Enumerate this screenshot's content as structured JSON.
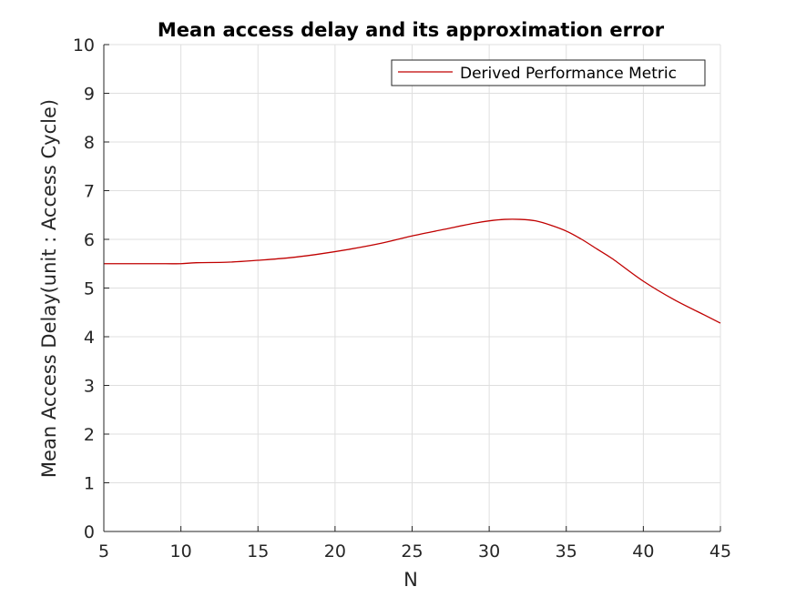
{
  "chart_data": {
    "type": "line",
    "title": "Mean access delay and its approximation error",
    "xlabel": "N",
    "ylabel": "Mean Access Delay(unit : Access Cycle)",
    "xlim": [
      5,
      45
    ],
    "ylim": [
      0,
      10
    ],
    "xticks": [
      5,
      10,
      15,
      20,
      25,
      30,
      35,
      40,
      45
    ],
    "yticks": [
      0,
      1,
      2,
      3,
      4,
      5,
      6,
      7,
      8,
      9,
      10
    ],
    "grid": true,
    "legend_position": "top-right",
    "series": [
      {
        "name": "Derived Performance Metric",
        "color": "#c00000",
        "x": [
          5,
          7,
          9,
          10,
          11,
          13,
          15,
          17,
          19,
          21,
          23,
          25,
          27,
          29,
          30,
          31,
          32,
          33,
          34,
          35,
          36,
          37,
          38,
          40,
          42,
          44,
          45
        ],
        "y": [
          5.5,
          5.5,
          5.5,
          5.5,
          5.52,
          5.53,
          5.57,
          5.62,
          5.7,
          5.8,
          5.92,
          6.07,
          6.2,
          6.33,
          6.38,
          6.41,
          6.41,
          6.38,
          6.29,
          6.17,
          6.0,
          5.8,
          5.6,
          5.14,
          4.76,
          4.44,
          4.28
        ]
      }
    ]
  }
}
